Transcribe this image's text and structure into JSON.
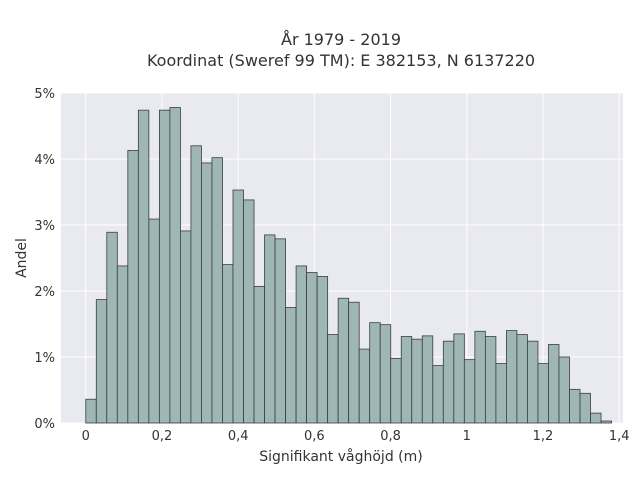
{
  "chart_data": {
    "type": "bar",
    "title": "År 1979 - 2019",
    "subtitle": "Koordinat (Sweref 99 TM): E 382153, N 6137220",
    "xlabel": "Signifikant våghöjd (m)",
    "ylabel": "Andel",
    "xlim": [
      -0.065,
      1.41
    ],
    "ylim": [
      0,
      0.05
    ],
    "bin_width": 0.0276,
    "bin_start": 0,
    "x_ticks": [
      0,
      0.2,
      0.4,
      0.6,
      0.8,
      1,
      1.2,
      1.4
    ],
    "x_tick_labels": [
      "0",
      "0,2",
      "0,4",
      "0,6",
      "0,8",
      "1",
      "1,2",
      "1,4"
    ],
    "y_ticks": [
      0,
      0.01,
      0.02,
      0.03,
      0.04,
      0.05
    ],
    "y_tick_labels": [
      "0%",
      "1%",
      "2%",
      "3%",
      "4%",
      "5%"
    ],
    "grid": true,
    "values": [
      0.0036,
      0.0187,
      0.0289,
      0.0238,
      0.0413,
      0.0474,
      0.0309,
      0.0474,
      0.0478,
      0.0291,
      0.042,
      0.0394,
      0.0402,
      0.024,
      0.0353,
      0.0338,
      0.0207,
      0.0285,
      0.0279,
      0.0175,
      0.0238,
      0.0228,
      0.0222,
      0.0134,
      0.0189,
      0.0183,
      0.0112,
      0.0152,
      0.0149,
      0.0098,
      0.0131,
      0.0127,
      0.0132,
      0.0087,
      0.0124,
      0.0135,
      0.0096,
      0.0139,
      0.0131,
      0.009,
      0.014,
      0.0134,
      0.0124,
      0.009,
      0.0119,
      0.01,
      0.0051,
      0.0045,
      0.0015,
      0.0003
    ]
  }
}
